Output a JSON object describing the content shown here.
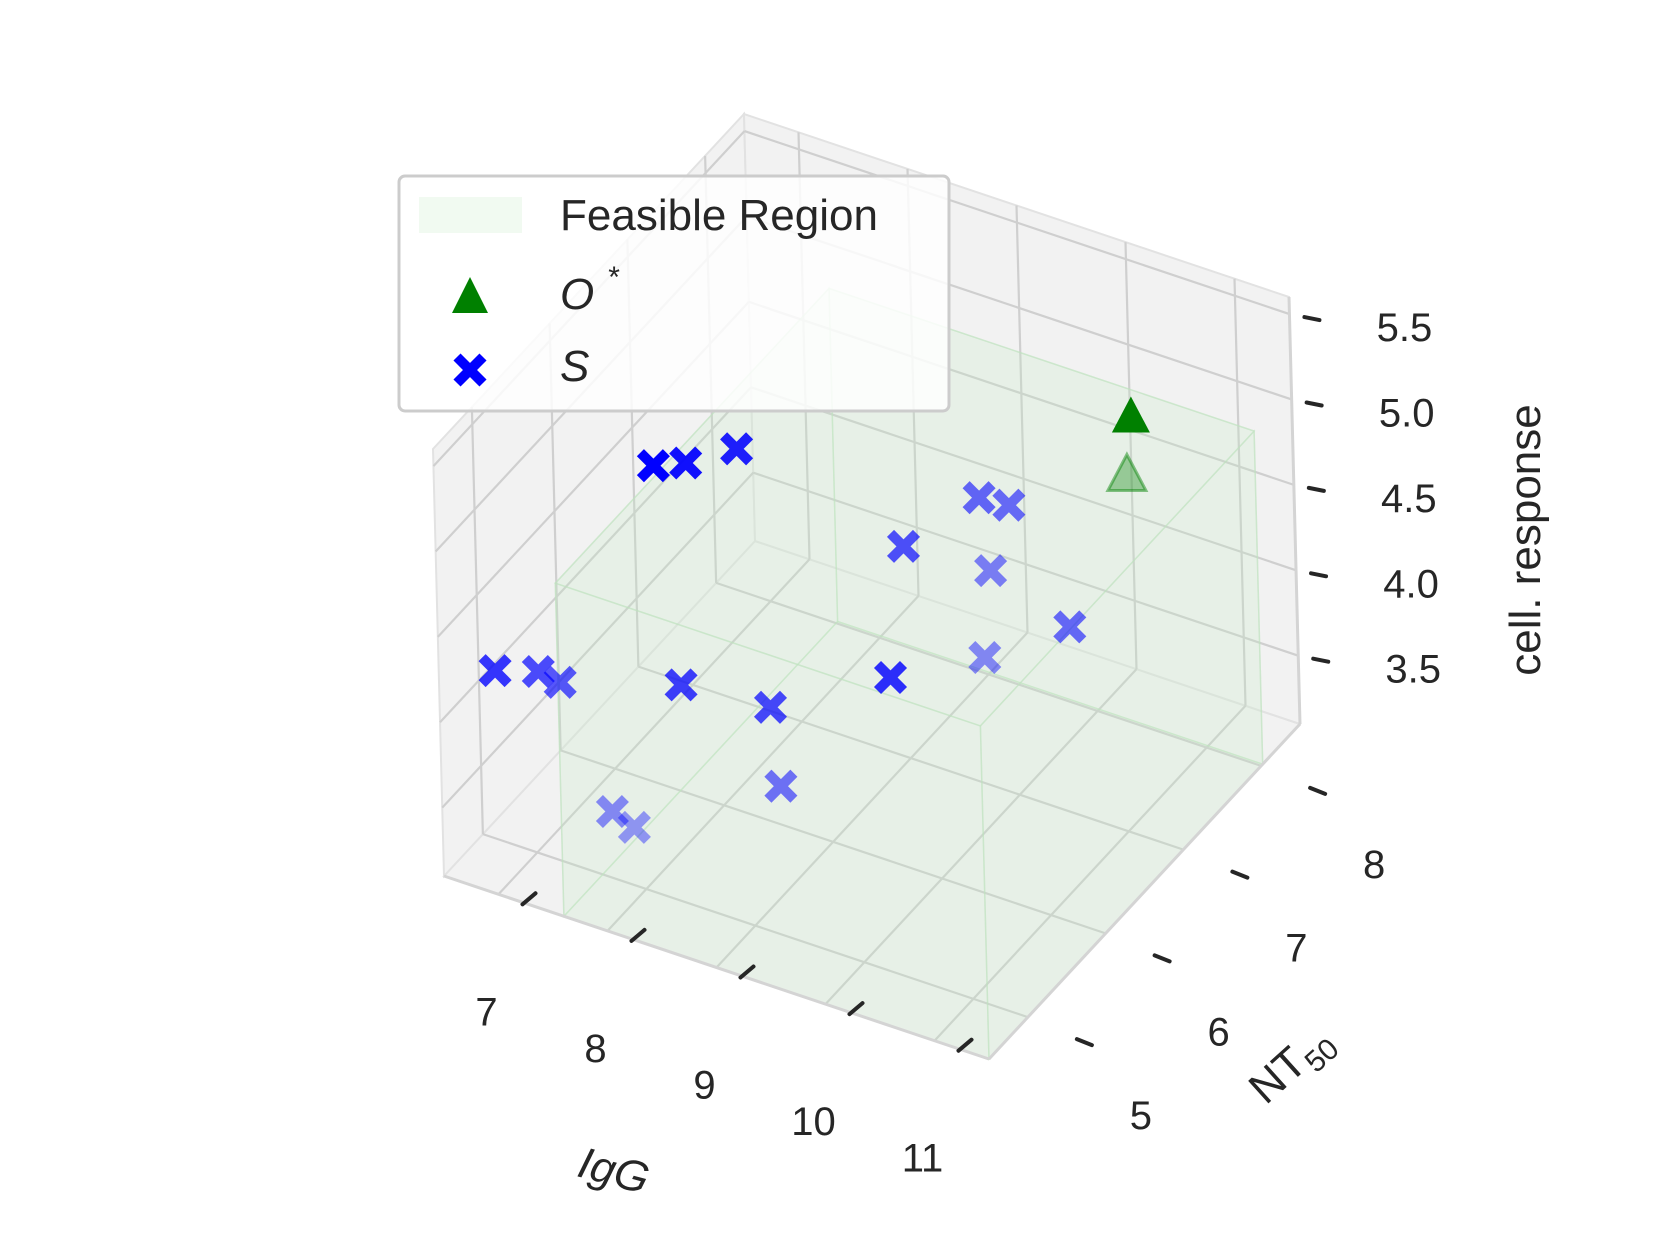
{
  "chart_data": {
    "type": "scatter",
    "projection": "3d",
    "xlabel": "IgG",
    "ylabel": "NT",
    "ylabel_subscript": "50",
    "zlabel": "cell. response",
    "x_ticks": [
      "7",
      "8",
      "9",
      "10",
      "11"
    ],
    "y_ticks": [
      "5",
      "6",
      "7",
      "8"
    ],
    "z_ticks": [
      "3.5",
      "4.0",
      "4.5",
      "5.0",
      "5.5"
    ],
    "xlim": [
      6.5,
      11.5
    ],
    "ylim": [
      4.5,
      8.5
    ],
    "zlim": [
      3.1,
      5.6
    ],
    "grid": true,
    "legend_position": "upper-left",
    "legend": {
      "feasible": "Feasible Region",
      "optimum": "O",
      "optimum_superscript": "*",
      "samples": "S"
    },
    "colors": {
      "feasible": "#c8ebc8",
      "optimum": "#008000",
      "samples": "#0000ff",
      "pane": "#f2f2f2",
      "grid": "#cfcfcf",
      "text": "#262626"
    },
    "optimum_point": {
      "x": 10.6,
      "y": 7.7,
      "z": 5.1
    },
    "sample_points": [
      {
        "x": 6.8,
        "y": 4.8,
        "z": 4.22
      },
      {
        "x": 7.2,
        "y": 4.8,
        "z": 4.3
      },
      {
        "x": 7.4,
        "y": 4.8,
        "z": 4.28
      },
      {
        "x": 8.0,
        "y": 4.6,
        "z": 3.75
      },
      {
        "x": 8.2,
        "y": 4.6,
        "z": 3.7
      },
      {
        "x": 8.0,
        "y": 5.5,
        "z": 4.05
      },
      {
        "x": 8.6,
        "y": 5.8,
        "z": 3.9
      },
      {
        "x": 8.9,
        "y": 5.5,
        "z": 3.65
      },
      {
        "x": 9.2,
        "y": 6.5,
        "z": 3.86
      },
      {
        "x": 7.5,
        "y": 5.9,
        "z": 5.03
      },
      {
        "x": 7.8,
        "y": 5.9,
        "z": 5.11
      },
      {
        "x": 8.2,
        "y": 6.0,
        "z": 5.23
      },
      {
        "x": 9.5,
        "y": 6.3,
        "z": 4.79
      },
      {
        "x": 10.1,
        "y": 6.45,
        "z": 5.13
      },
      {
        "x": 10.3,
        "y": 6.55,
        "z": 5.08
      },
      {
        "x": 10.3,
        "y": 6.3,
        "z": 4.82
      },
      {
        "x": 10.3,
        "y": 6.2,
        "z": 4.36
      },
      {
        "x": 10.65,
        "y": 6.8,
        "z": 4.32
      }
    ]
  }
}
